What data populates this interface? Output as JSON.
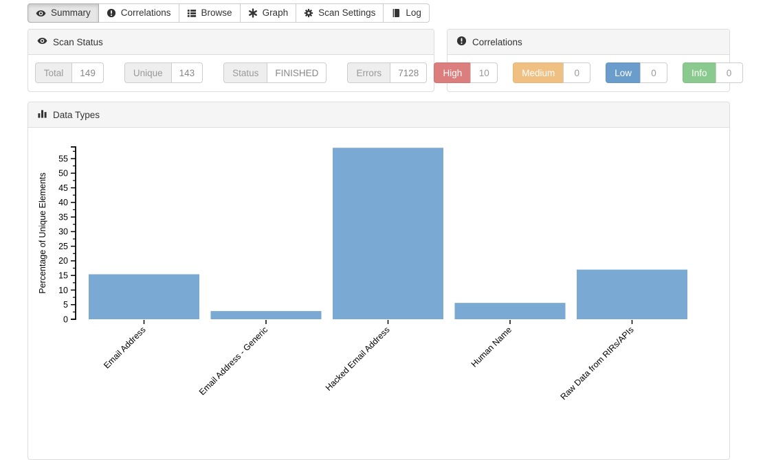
{
  "tabs": {
    "items": [
      {
        "label": "Summary",
        "icon": "eye-icon",
        "active": true
      },
      {
        "label": "Correlations",
        "icon": "exclamation-circle-icon",
        "active": false
      },
      {
        "label": "Browse",
        "icon": "list-icon",
        "active": false
      },
      {
        "label": "Graph",
        "icon": "asterisk-icon",
        "active": false
      },
      {
        "label": "Scan Settings",
        "icon": "gear-icon",
        "active": false
      },
      {
        "label": "Log",
        "icon": "book-icon",
        "active": false
      }
    ]
  },
  "scan_status": {
    "title": "Scan Status",
    "fields": [
      {
        "label": "Total",
        "value": "149"
      },
      {
        "label": "Unique",
        "value": "143"
      },
      {
        "label": "Status",
        "value": "FINISHED"
      },
      {
        "label": "Errors",
        "value": "7128"
      }
    ]
  },
  "correlations_panel": {
    "title": "Correlations",
    "items": [
      {
        "label": "High",
        "count": "10",
        "color": "#dd7e7e"
      },
      {
        "label": "Medium",
        "count": "0",
        "color": "#f0c083"
      },
      {
        "label": "Low",
        "count": "0",
        "color": "#6b9dcc"
      },
      {
        "label": "Info",
        "count": "0",
        "color": "#8bca8e"
      }
    ]
  },
  "data_types_panel": {
    "title": "Data Types"
  },
  "chart_data": {
    "type": "bar",
    "title": "Data Types",
    "categories": [
      "Email Address",
      "Email Address - Generic",
      "Hacked Email Address",
      "Human Name",
      "Raw Data from RIRs/APIs"
    ],
    "values": [
      15.4,
      2.8,
      58.7,
      5.6,
      17.0
    ],
    "xlabel": "",
    "ylabel": "Percentage of Unique Elements",
    "ylim": [
      0,
      59
    ],
    "ytick_step": 5,
    "minor_tick_step": 2.5,
    "bar_color": "#7aa9d4",
    "axis_color": "#000000",
    "grid": false,
    "legend": false,
    "x_label_rotation": -45
  }
}
